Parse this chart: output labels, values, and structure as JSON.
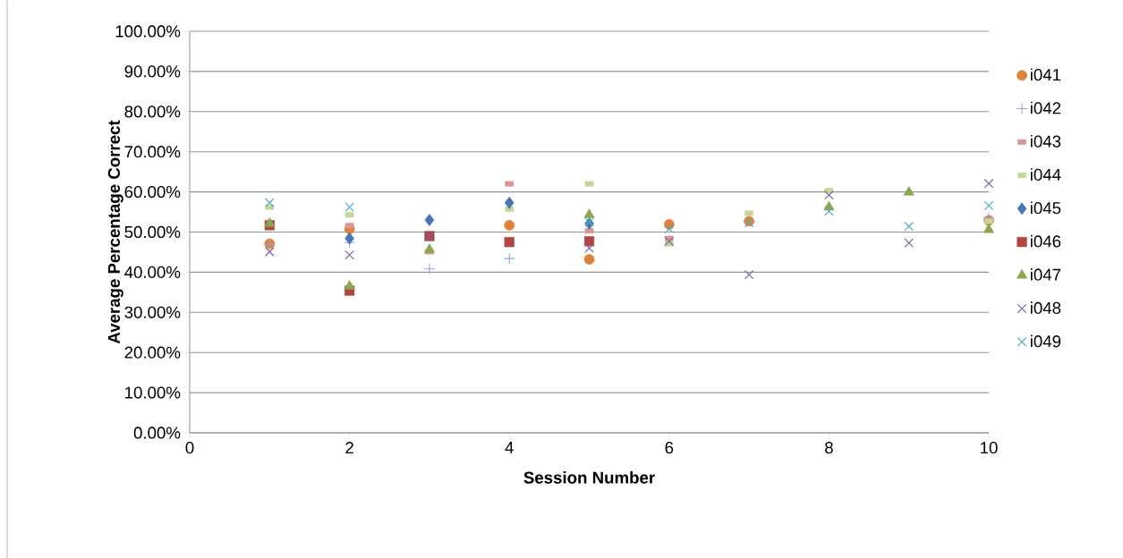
{
  "chart_data": {
    "type": "scatter",
    "xlabel": "Session Number",
    "ylabel": "Average Percentage Correct",
    "x": [
      1,
      2,
      3,
      4,
      5,
      6,
      7,
      8,
      9,
      10
    ],
    "series": [
      {
        "name": "i041",
        "color": "#e0823a",
        "marker": "circle",
        "values": [
          47.1,
          50.8,
          null,
          51.7,
          43.2,
          51.9,
          52.7,
          null,
          null,
          52.9
        ]
      },
      {
        "name": "i042",
        "color": "#8eaadb",
        "marker": "plus",
        "values": [
          46.9,
          47.4,
          40.8,
          43.4,
          null,
          null,
          null,
          null,
          null,
          53.6
        ]
      },
      {
        "name": "i043",
        "color": "#d99694",
        "marker": "square",
        "values": [
          null,
          51.6,
          45.1,
          62.0,
          50.3,
          48.4,
          null,
          null,
          null,
          null
        ]
      },
      {
        "name": "i044",
        "color": "#c3d69b",
        "marker": "square",
        "values": [
          56.2,
          54.3,
          null,
          55.7,
          62.0,
          47.1,
          54.7,
          60.3,
          null,
          52.7
        ]
      },
      {
        "name": "i045",
        "color": "#4a76b0",
        "marker": "diamond",
        "values": [
          null,
          48.4,
          53.0,
          57.3,
          52.1,
          null,
          null,
          null,
          null,
          null
        ]
      },
      {
        "name": "i046",
        "color": "#b04644",
        "marker": "square",
        "values": [
          51.7,
          35.4,
          49.0,
          47.5,
          47.7,
          null,
          null,
          null,
          null,
          null
        ]
      },
      {
        "name": "i047",
        "color": "#8aa74e",
        "marker": "triangle",
        "values": [
          52.1,
          36.5,
          45.6,
          null,
          54.3,
          null,
          null,
          56.2,
          59.9,
          50.6
        ]
      },
      {
        "name": "i048",
        "color": "#7e64a0",
        "marker": "cross",
        "values": [
          45.1,
          44.3,
          48.8,
          null,
          46.0,
          47.7,
          39.4,
          59.2,
          47.3,
          62.1
        ]
      },
      {
        "name": "i049",
        "color": "#4bacc6",
        "marker": "cross",
        "values": [
          57.3,
          56.2,
          null,
          null,
          52.5,
          50.8,
          52.3,
          55.2,
          51.4,
          56.6
        ]
      }
    ],
    "xlim": [
      0,
      10
    ],
    "xticks": [
      0,
      2,
      4,
      6,
      8,
      10
    ],
    "ylim": [
      0,
      100
    ],
    "yticks": [
      {
        "value": 0,
        "label": "0.00%"
      },
      {
        "value": 10,
        "label": "10.00%"
      },
      {
        "value": 20,
        "label": "20.00%"
      },
      {
        "value": 30,
        "label": "30.00%"
      },
      {
        "value": 40,
        "label": "40.00%"
      },
      {
        "value": 50,
        "label": "50.00%"
      },
      {
        "value": 60,
        "label": "60.00%"
      },
      {
        "value": 70,
        "label": "70.00%"
      },
      {
        "value": 80,
        "label": "80.00%"
      },
      {
        "value": 90,
        "label": "90.00%"
      },
      {
        "value": 100,
        "label": "100.00%"
      }
    ],
    "grid": "y",
    "legend": "right"
  }
}
